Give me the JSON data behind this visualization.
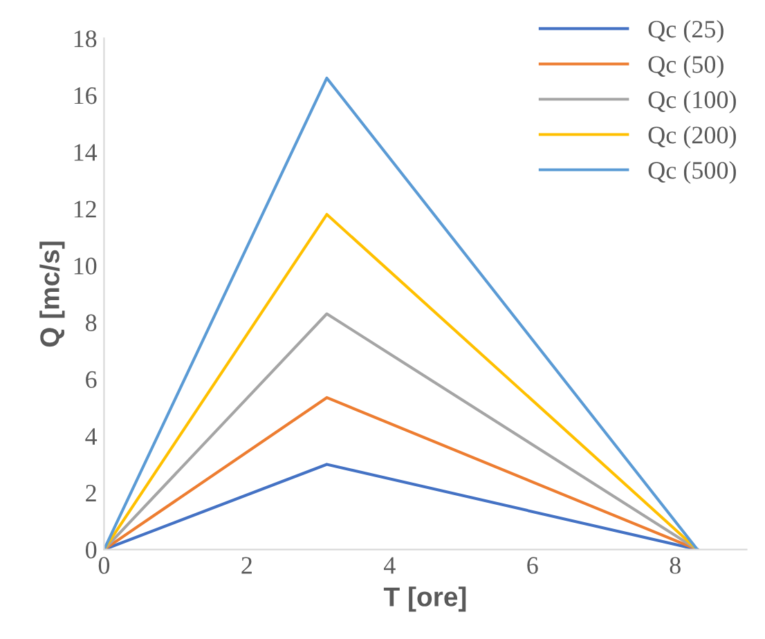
{
  "chart_data": {
    "type": "line",
    "xlabel": "T [ore]",
    "ylabel": "Q [mc/s]",
    "x": [
      0,
      3.12,
      8.31
    ],
    "series": [
      {
        "name": "Qc (25)",
        "color": "#4472c4",
        "values": [
          0,
          3.0,
          0
        ]
      },
      {
        "name": "Qc (50)",
        "color": "#ed7d31",
        "values": [
          0,
          5.35,
          0
        ]
      },
      {
        "name": "Qc (100)",
        "color": "#a5a5a5",
        "values": [
          0,
          8.3,
          0
        ]
      },
      {
        "name": "Qc (200)",
        "color": "#ffc000",
        "values": [
          0,
          11.8,
          0
        ]
      },
      {
        "name": "Qc (500)",
        "color": "#5b9bd5",
        "values": [
          0,
          16.6,
          0
        ]
      }
    ],
    "xlim": [
      0,
      9
    ],
    "xticks": [
      0,
      2,
      4,
      6,
      8
    ],
    "ylim": [
      0,
      18
    ],
    "yticks": [
      0,
      2,
      4,
      6,
      8,
      10,
      12,
      14,
      16,
      18
    ],
    "grid": false,
    "legend": "top right",
    "marker": "none",
    "line_style": "solid"
  }
}
